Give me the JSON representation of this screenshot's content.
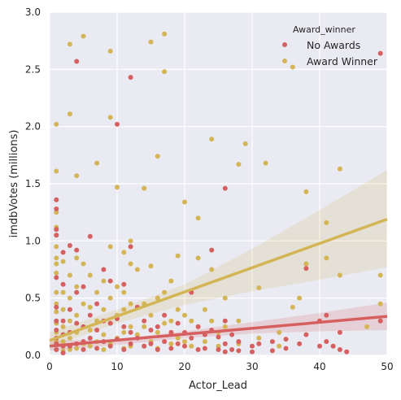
{
  "chart_data": {
    "type": "scatter",
    "title": "",
    "xlabel": "Actor_Lead",
    "ylabel": "imdbVotes (millions)",
    "xlim": [
      0,
      50
    ],
    "ylim": [
      0,
      3.0
    ],
    "xticks": [
      "0",
      "10",
      "20",
      "30",
      "40",
      "50"
    ],
    "yticks": [
      "0.0",
      "0.5",
      "1.0",
      "1.5",
      "2.0",
      "2.5",
      "3.0"
    ],
    "grid": true,
    "legend": {
      "title": "Award_winner",
      "placement": "top-right",
      "entries": [
        "No Awards",
        "Award Winner"
      ]
    },
    "colors": {
      "background": "#eaeaf2",
      "grid": "#ffffff",
      "no_awards": "#d65f5f",
      "award_winner": "#d4b556"
    },
    "series": [
      {
        "name": "No Awards",
        "color": "#d65f5f",
        "points": [
          [
            1,
            1.36
          ],
          [
            1,
            1.28
          ],
          [
            1,
            1.1
          ],
          [
            1,
            1.05
          ],
          [
            1,
            0.68
          ],
          [
            1,
            0.42
          ],
          [
            1,
            0.3
          ],
          [
            1,
            0.22
          ],
          [
            1,
            0.15
          ],
          [
            1,
            0.1
          ],
          [
            1,
            0.05
          ],
          [
            2,
            0.9
          ],
          [
            2,
            0.62
          ],
          [
            2,
            0.3
          ],
          [
            2,
            0.18
          ],
          [
            2,
            0.08
          ],
          [
            2,
            0.02
          ],
          [
            3,
            0.96
          ],
          [
            3,
            0.4
          ],
          [
            3,
            0.2
          ],
          [
            3,
            0.08
          ],
          [
            4,
            2.57
          ],
          [
            4,
            0.92
          ],
          [
            4,
            0.55
          ],
          [
            4,
            0.28
          ],
          [
            4,
            0.1
          ],
          [
            5,
            0.6
          ],
          [
            5,
            0.25
          ],
          [
            5,
            0.12
          ],
          [
            5,
            0.05
          ],
          [
            6,
            1.04
          ],
          [
            6,
            0.35
          ],
          [
            6,
            0.15
          ],
          [
            7,
            0.45
          ],
          [
            7,
            0.22
          ],
          [
            7,
            0.06
          ],
          [
            8,
            0.75
          ],
          [
            8,
            0.3
          ],
          [
            8,
            0.12
          ],
          [
            9,
            0.65
          ],
          [
            9,
            0.28
          ],
          [
            9,
            0.08
          ],
          [
            10,
            2.02
          ],
          [
            10,
            0.32
          ],
          [
            10,
            0.14
          ],
          [
            11,
            0.62
          ],
          [
            11,
            0.25
          ],
          [
            11,
            0.05
          ],
          [
            12,
            2.43
          ],
          [
            12,
            0.95
          ],
          [
            12,
            0.2
          ],
          [
            12,
            0.1
          ],
          [
            13,
            0.42
          ],
          [
            13,
            0.15
          ],
          [
            14,
            0.3
          ],
          [
            14,
            0.08
          ],
          [
            15,
            0.22
          ],
          [
            15,
            0.1
          ],
          [
            16,
            0.25
          ],
          [
            16,
            0.05
          ],
          [
            17,
            0.35
          ],
          [
            17,
            0.12
          ],
          [
            18,
            0.2
          ],
          [
            18,
            0.06
          ],
          [
            19,
            0.28
          ],
          [
            19,
            0.1
          ],
          [
            20,
            0.2
          ],
          [
            20,
            0.08
          ],
          [
            21,
            0.55
          ],
          [
            21,
            0.15
          ],
          [
            22,
            0.25
          ],
          [
            22,
            0.05
          ],
          [
            23,
            0.18
          ],
          [
            23,
            0.06
          ],
          [
            24,
            0.92
          ],
          [
            24,
            0.22
          ],
          [
            25,
            0.16
          ],
          [
            25,
            0.05
          ],
          [
            26,
            1.46
          ],
          [
            26,
            0.3
          ],
          [
            26,
            0.1
          ],
          [
            26,
            0.03
          ],
          [
            27,
            0.18
          ],
          [
            27,
            0.05
          ],
          [
            28,
            0.12
          ],
          [
            28,
            0.04
          ],
          [
            30,
            0.08
          ],
          [
            30,
            0.03
          ],
          [
            31,
            0.1
          ],
          [
            33,
            0.12
          ],
          [
            33,
            0.04
          ],
          [
            35,
            0.14
          ],
          [
            35,
            0.06
          ],
          [
            37,
            0.1
          ],
          [
            38,
            0.76
          ],
          [
            38,
            0.18
          ],
          [
            40,
            0.3
          ],
          [
            40,
            0.08
          ],
          [
            41,
            0.35
          ],
          [
            41,
            0.12
          ],
          [
            42,
            0.08
          ],
          [
            43,
            0.2
          ],
          [
            43,
            0.05
          ],
          [
            44,
            0.03
          ],
          [
            49,
            2.64
          ],
          [
            49,
            0.3
          ]
        ]
      },
      {
        "name": "Award Winner",
        "color": "#d4b556",
        "points": [
          [
            1,
            2.02
          ],
          [
            1,
            1.61
          ],
          [
            1,
            1.25
          ],
          [
            1,
            1.12
          ],
          [
            1,
            1.05
          ],
          [
            1,
            0.95
          ],
          [
            1,
            0.85
          ],
          [
            1,
            0.8
          ],
          [
            1,
            0.72
          ],
          [
            1,
            0.55
          ],
          [
            1,
            0.45
          ],
          [
            1,
            0.38
          ],
          [
            1,
            0.28
          ],
          [
            1,
            0.2
          ],
          [
            1,
            0.12
          ],
          [
            1,
            0.05
          ],
          [
            2,
            0.82
          ],
          [
            2,
            0.55
          ],
          [
            2,
            0.4
          ],
          [
            2,
            0.25
          ],
          [
            2,
            0.12
          ],
          [
            2,
            0.04
          ],
          [
            3,
            2.72
          ],
          [
            3,
            2.11
          ],
          [
            3,
            0.7
          ],
          [
            3,
            0.5
          ],
          [
            3,
            0.3
          ],
          [
            3,
            0.15
          ],
          [
            3,
            0.05
          ],
          [
            4,
            1.57
          ],
          [
            4,
            0.85
          ],
          [
            4,
            0.6
          ],
          [
            4,
            0.35
          ],
          [
            4,
            0.2
          ],
          [
            4,
            0.06
          ],
          [
            5,
            2.79
          ],
          [
            5,
            0.8
          ],
          [
            5,
            0.45
          ],
          [
            5,
            0.25
          ],
          [
            5,
            0.1
          ],
          [
            6,
            0.7
          ],
          [
            6,
            0.42
          ],
          [
            6,
            0.22
          ],
          [
            6,
            0.08
          ],
          [
            7,
            1.68
          ],
          [
            7,
            0.55
          ],
          [
            7,
            0.3
          ],
          [
            7,
            0.12
          ],
          [
            8,
            0.65
          ],
          [
            8,
            0.4
          ],
          [
            8,
            0.18
          ],
          [
            8,
            0.05
          ],
          [
            9,
            2.66
          ],
          [
            9,
            2.08
          ],
          [
            9,
            0.95
          ],
          [
            9,
            0.5
          ],
          [
            9,
            0.28
          ],
          [
            9,
            0.1
          ],
          [
            10,
            1.47
          ],
          [
            10,
            0.6
          ],
          [
            10,
            0.35
          ],
          [
            10,
            0.15
          ],
          [
            11,
            0.9
          ],
          [
            11,
            0.55
          ],
          [
            11,
            0.4
          ],
          [
            11,
            0.2
          ],
          [
            11,
            0.06
          ],
          [
            12,
            1.0
          ],
          [
            12,
            0.8
          ],
          [
            12,
            0.45
          ],
          [
            12,
            0.25
          ],
          [
            12,
            0.08
          ],
          [
            13,
            0.75
          ],
          [
            13,
            0.42
          ],
          [
            13,
            0.18
          ],
          [
            14,
            1.46
          ],
          [
            14,
            0.45
          ],
          [
            14,
            0.25
          ],
          [
            14,
            0.08
          ],
          [
            15,
            2.74
          ],
          [
            15,
            0.78
          ],
          [
            15,
            0.35
          ],
          [
            15,
            0.12
          ],
          [
            16,
            1.74
          ],
          [
            16,
            0.5
          ],
          [
            16,
            0.2
          ],
          [
            16,
            0.06
          ],
          [
            17,
            2.81
          ],
          [
            17,
            2.48
          ],
          [
            17,
            0.55
          ],
          [
            17,
            0.28
          ],
          [
            18,
            0.65
          ],
          [
            18,
            0.3
          ],
          [
            18,
            0.1
          ],
          [
            19,
            0.87
          ],
          [
            19,
            0.4
          ],
          [
            19,
            0.15
          ],
          [
            20,
            1.34
          ],
          [
            20,
            0.35
          ],
          [
            20,
            0.12
          ],
          [
            21,
            0.3
          ],
          [
            21,
            0.08
          ],
          [
            22,
            1.2
          ],
          [
            22,
            0.85
          ],
          [
            22,
            0.25
          ],
          [
            23,
            0.4
          ],
          [
            23,
            0.12
          ],
          [
            24,
            1.89
          ],
          [
            24,
            0.75
          ],
          [
            24,
            0.3
          ],
          [
            25,
            0.2
          ],
          [
            25,
            0.08
          ],
          [
            26,
            0.5
          ],
          [
            26,
            0.25
          ],
          [
            28,
            1.67
          ],
          [
            28,
            0.3
          ],
          [
            28,
            0.1
          ],
          [
            29,
            1.85
          ],
          [
            31,
            0.59
          ],
          [
            31,
            0.15
          ],
          [
            32,
            1.68
          ],
          [
            34,
            0.2
          ],
          [
            34,
            0.08
          ],
          [
            36,
            2.52
          ],
          [
            36,
            0.42
          ],
          [
            37,
            0.5
          ],
          [
            38,
            1.43
          ],
          [
            38,
            0.8
          ],
          [
            41,
            1.16
          ],
          [
            41,
            0.85
          ],
          [
            43,
            1.63
          ],
          [
            43,
            0.7
          ],
          [
            47,
            0.25
          ],
          [
            49,
            0.7
          ],
          [
            49,
            0.45
          ]
        ]
      }
    ],
    "regression": [
      {
        "name": "No Awards",
        "line": [
          [
            0,
            0.08
          ],
          [
            50,
            0.34
          ]
        ],
        "ci_upper": [
          [
            0,
            0.13
          ],
          [
            10,
            0.14
          ],
          [
            20,
            0.21
          ],
          [
            30,
            0.29
          ],
          [
            40,
            0.37
          ],
          [
            50,
            0.46
          ]
        ],
        "ci_lower": [
          [
            0,
            0.04
          ],
          [
            10,
            0.09
          ],
          [
            20,
            0.15
          ],
          [
            30,
            0.19
          ],
          [
            40,
            0.21
          ],
          [
            50,
            0.22
          ]
        ]
      },
      {
        "name": "Award Winner",
        "line": [
          [
            0,
            0.13
          ],
          [
            50,
            1.19
          ]
        ],
        "ci_upper": [
          [
            0,
            0.2
          ],
          [
            10,
            0.4
          ],
          [
            20,
            0.62
          ],
          [
            30,
            0.93
          ],
          [
            40,
            1.27
          ],
          [
            50,
            1.62
          ]
        ],
        "ci_lower": [
          [
            0,
            0.07
          ],
          [
            10,
            0.28
          ],
          [
            20,
            0.44
          ],
          [
            30,
            0.56
          ],
          [
            40,
            0.66
          ],
          [
            50,
            0.77
          ]
        ]
      }
    ]
  }
}
